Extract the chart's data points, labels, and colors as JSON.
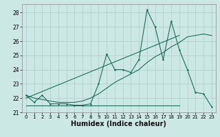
{
  "xlabel": "Humidex (Indice chaleur)",
  "bg_color": "#cce8e4",
  "line_color": "#1e6b5c",
  "xlim": [
    -0.5,
    23.5
  ],
  "ylim": [
    21.0,
    28.6
  ],
  "yticks": [
    21,
    22,
    23,
    24,
    25,
    26,
    27,
    28
  ],
  "xticks": [
    0,
    1,
    2,
    3,
    4,
    5,
    6,
    7,
    8,
    9,
    10,
    11,
    12,
    13,
    14,
    15,
    16,
    17,
    18,
    19,
    20,
    21,
    22,
    23
  ],
  "series1_x": [
    0,
    1,
    2,
    3,
    4,
    5,
    6,
    7,
    8,
    9,
    10,
    11,
    12,
    13,
    14,
    15,
    16,
    17,
    18,
    19,
    20,
    21,
    22,
    23
  ],
  "series1_y": [
    22.2,
    21.7,
    22.2,
    21.6,
    21.6,
    21.6,
    21.5,
    21.5,
    21.6,
    23.0,
    25.1,
    24.0,
    24.0,
    23.8,
    24.7,
    28.2,
    27.0,
    24.7,
    27.4,
    25.4,
    24.0,
    22.4,
    22.3,
    21.4
  ],
  "series2_x": [
    0,
    19
  ],
  "series2_y": [
    21.5,
    21.5
  ],
  "series3_x": [
    0,
    1,
    2,
    3,
    4,
    5,
    6,
    7,
    8,
    9,
    10,
    11,
    12,
    13,
    14,
    15,
    16,
    17,
    18,
    19,
    20,
    21,
    22,
    23
  ],
  "series3_y": [
    22.2,
    22.0,
    21.9,
    21.8,
    21.7,
    21.7,
    21.7,
    21.8,
    22.0,
    22.3,
    22.7,
    23.1,
    23.4,
    23.7,
    24.0,
    24.5,
    24.9,
    25.2,
    25.6,
    25.9,
    26.3,
    26.4,
    26.5,
    26.4
  ],
  "series4_x": [
    0,
    19
  ],
  "series4_y": [
    22.0,
    26.4
  ],
  "grid_color": "#aaceca",
  "tick_fontsize": 5.5,
  "xlabel_fontsize": 7.0
}
